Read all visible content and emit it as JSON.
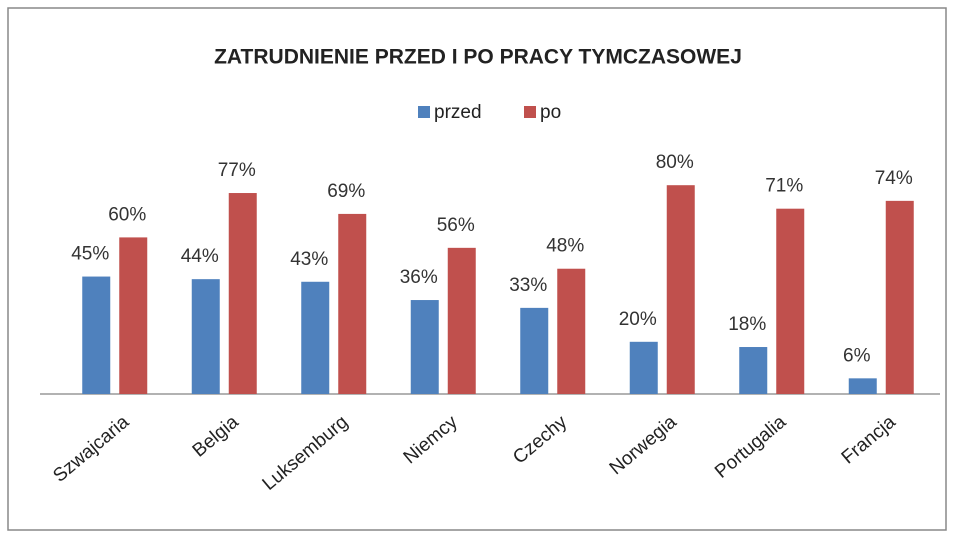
{
  "chart_data": {
    "type": "bar",
    "title": "ZATRUDNIENIE PRZED I PO PRACY TYMCZASOWEJ",
    "categories": [
      "Szwajcaria",
      "Belgia",
      "Luksemburg",
      "Niemcy",
      "Czechy",
      "Norwegia",
      "Portugalia",
      "Francja"
    ],
    "series": [
      {
        "name": "przed",
        "color": "#4f81bd",
        "values": [
          45,
          44,
          43,
          36,
          33,
          20,
          18,
          6
        ],
        "value_labels": [
          "45%",
          "44%",
          "43%",
          "36%",
          "33%",
          "20%",
          "18%",
          "6%"
        ]
      },
      {
        "name": "po",
        "color": "#c0504d",
        "values": [
          60,
          77,
          69,
          56,
          48,
          80,
          71,
          74
        ],
        "value_labels": [
          "60%",
          "77%",
          "69%",
          "56%",
          "48%",
          "80%",
          "71%",
          "74%"
        ]
      }
    ],
    "ylim": [
      0,
      100
    ],
    "legend": "top"
  }
}
